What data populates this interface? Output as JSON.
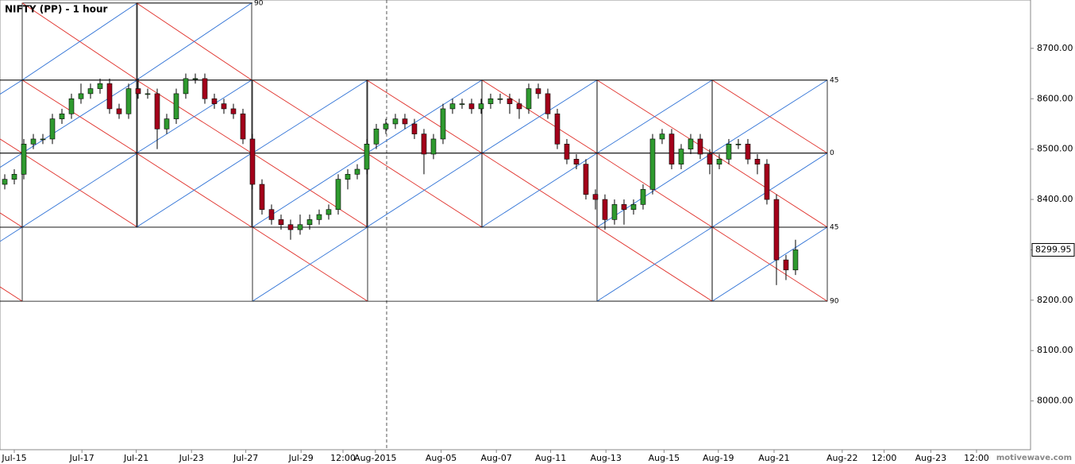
{
  "chart_data": {
    "type": "candlestick",
    "title": "NIFTY (PP) - 1 hour",
    "watermark": "motivewave.com",
    "up_color": "#2f9a2f",
    "down_color": "#a3001b",
    "last_price": 8299.95,
    "ylim": [
      7900,
      8796
    ],
    "yticks": [
      {
        "value": 8000,
        "label": "8000.00"
      },
      {
        "value": 8100,
        "label": "8100.00"
      },
      {
        "value": 8200,
        "label": "8200.00"
      },
      {
        "value": 8300,
        "label": "8300.00"
      },
      {
        "value": 8400,
        "label": "8400.00"
      },
      {
        "value": 8500,
        "label": "8500.00"
      },
      {
        "value": 8600,
        "label": "8600.00"
      },
      {
        "value": 8700,
        "label": "8700.00"
      }
    ],
    "xlim": [
      -0.5,
      107.67
    ],
    "xticks": [
      {
        "value": 1,
        "label": "Jul-15"
      },
      {
        "value": 8.1,
        "label": "Jul-17"
      },
      {
        "value": 13.8,
        "label": "Jul-21"
      },
      {
        "value": 19.6,
        "label": "Jul-23"
      },
      {
        "value": 25.3,
        "label": "Jul-27"
      },
      {
        "value": 31.1,
        "label": "Jul-29"
      },
      {
        "value": 35.5,
        "label": "12:00"
      },
      {
        "value": 38.9,
        "label": "Aug-2015"
      },
      {
        "value": 45.8,
        "label": "Aug-05"
      },
      {
        "value": 51.6,
        "label": "Aug-07"
      },
      {
        "value": 57.3,
        "label": "Aug-11"
      },
      {
        "value": 63.1,
        "label": "Aug-13"
      },
      {
        "value": 69.2,
        "label": "Aug-15"
      },
      {
        "value": 74.9,
        "label": "Aug-19"
      },
      {
        "value": 80.75,
        "label": "Aug-21"
      },
      {
        "value": 87.9,
        "label": "Aug-22"
      },
      {
        "value": 92.3,
        "label": "12:00"
      },
      {
        "value": 97.2,
        "label": "Aug-23"
      },
      {
        "value": 102,
        "label": "12:00"
      }
    ],
    "gann_levels": [
      {
        "value": 8790,
        "label": "90"
      },
      {
        "value": 8637,
        "label": "45"
      },
      {
        "value": 8492,
        "label": "0"
      },
      {
        "value": 8345,
        "label": "45"
      },
      {
        "value": 8198,
        "label": "90"
      }
    ],
    "open": [
      8430,
      8440,
      8450,
      8510,
      8520,
      8520,
      8560,
      8570,
      8600,
      8610,
      8620,
      8630,
      8580,
      8570,
      8620,
      8610,
      8610,
      8540,
      8560,
      8610,
      8640,
      8640,
      8600,
      8590,
      8580,
      8570,
      8520,
      8430,
      8380,
      8360,
      8350,
      8340,
      8350,
      8360,
      8370,
      8380,
      8440,
      8450,
      8460,
      8510,
      8540,
      8550,
      8560,
      8550,
      8530,
      8490,
      8520,
      8580,
      8590,
      8590,
      8580,
      8590,
      8600,
      8600,
      8590,
      8580,
      8620,
      8610,
      8570,
      8510,
      8480,
      8470,
      8410,
      8400,
      8360,
      8390,
      8380,
      8390,
      8420,
      8520,
      8530,
      8470,
      8500,
      8520,
      8490,
      8470,
      8480,
      8510,
      8510,
      8480,
      8470,
      8400,
      8280,
      8260
    ],
    "high": [
      8450,
      8460,
      8520,
      8530,
      8530,
      8570,
      8580,
      8610,
      8630,
      8630,
      8640,
      8640,
      8590,
      8630,
      8640,
      8620,
      8620,
      8570,
      8620,
      8650,
      8650,
      8650,
      8610,
      8600,
      8590,
      8580,
      8530,
      8440,
      8390,
      8370,
      8360,
      8370,
      8370,
      8380,
      8390,
      8450,
      8460,
      8470,
      8520,
      8550,
      8560,
      8570,
      8570,
      8560,
      8540,
      8530,
      8590,
      8600,
      8600,
      8600,
      8600,
      8610,
      8610,
      8610,
      8600,
      8630,
      8630,
      8620,
      8580,
      8520,
      8490,
      8480,
      8420,
      8410,
      8400,
      8400,
      8400,
      8430,
      8530,
      8540,
      8540,
      8510,
      8530,
      8530,
      8500,
      8490,
      8520,
      8520,
      8520,
      8490,
      8480,
      8410,
      8290,
      8320
    ],
    "low": [
      8420,
      8430,
      8440,
      8500,
      8510,
      8510,
      8550,
      8560,
      8590,
      8600,
      8610,
      8570,
      8560,
      8560,
      8600,
      8600,
      8500,
      8530,
      8550,
      8600,
      8630,
      8590,
      8580,
      8570,
      8560,
      8510,
      8420,
      8370,
      8350,
      8340,
      8320,
      8330,
      8340,
      8350,
      8360,
      8370,
      8420,
      8440,
      8450,
      8500,
      8530,
      8540,
      8540,
      8520,
      8450,
      8480,
      8510,
      8570,
      8580,
      8570,
      8570,
      8580,
      8590,
      8570,
      8560,
      8570,
      8600,
      8560,
      8500,
      8470,
      8460,
      8400,
      8380,
      8340,
      8350,
      8350,
      8370,
      8380,
      8410,
      8510,
      8460,
      8460,
      8490,
      8480,
      8450,
      8460,
      8470,
      8500,
      8470,
      8450,
      8390,
      8230,
      8240,
      8250
    ],
    "close": [
      8440,
      8450,
      8510,
      8520,
      8520,
      8560,
      8570,
      8600,
      8610,
      8620,
      8630,
      8580,
      8570,
      8620,
      8610,
      8610,
      8540,
      8560,
      8610,
      8640,
      8640,
      8600,
      8590,
      8580,
      8570,
      8520,
      8430,
      8380,
      8360,
      8350,
      8340,
      8350,
      8360,
      8370,
      8380,
      8440,
      8450,
      8460,
      8510,
      8540,
      8550,
      8560,
      8550,
      8530,
      8490,
      8520,
      8580,
      8590,
      8590,
      8580,
      8590,
      8600,
      8600,
      8590,
      8580,
      8620,
      8610,
      8570,
      8510,
      8480,
      8470,
      8410,
      8400,
      8360,
      8390,
      8380,
      8390,
      8420,
      8520,
      8530,
      8470,
      8500,
      8520,
      8490,
      8470,
      8480,
      8510,
      8510,
      8480,
      8470,
      8400,
      8280,
      8260,
      8300
    ]
  }
}
